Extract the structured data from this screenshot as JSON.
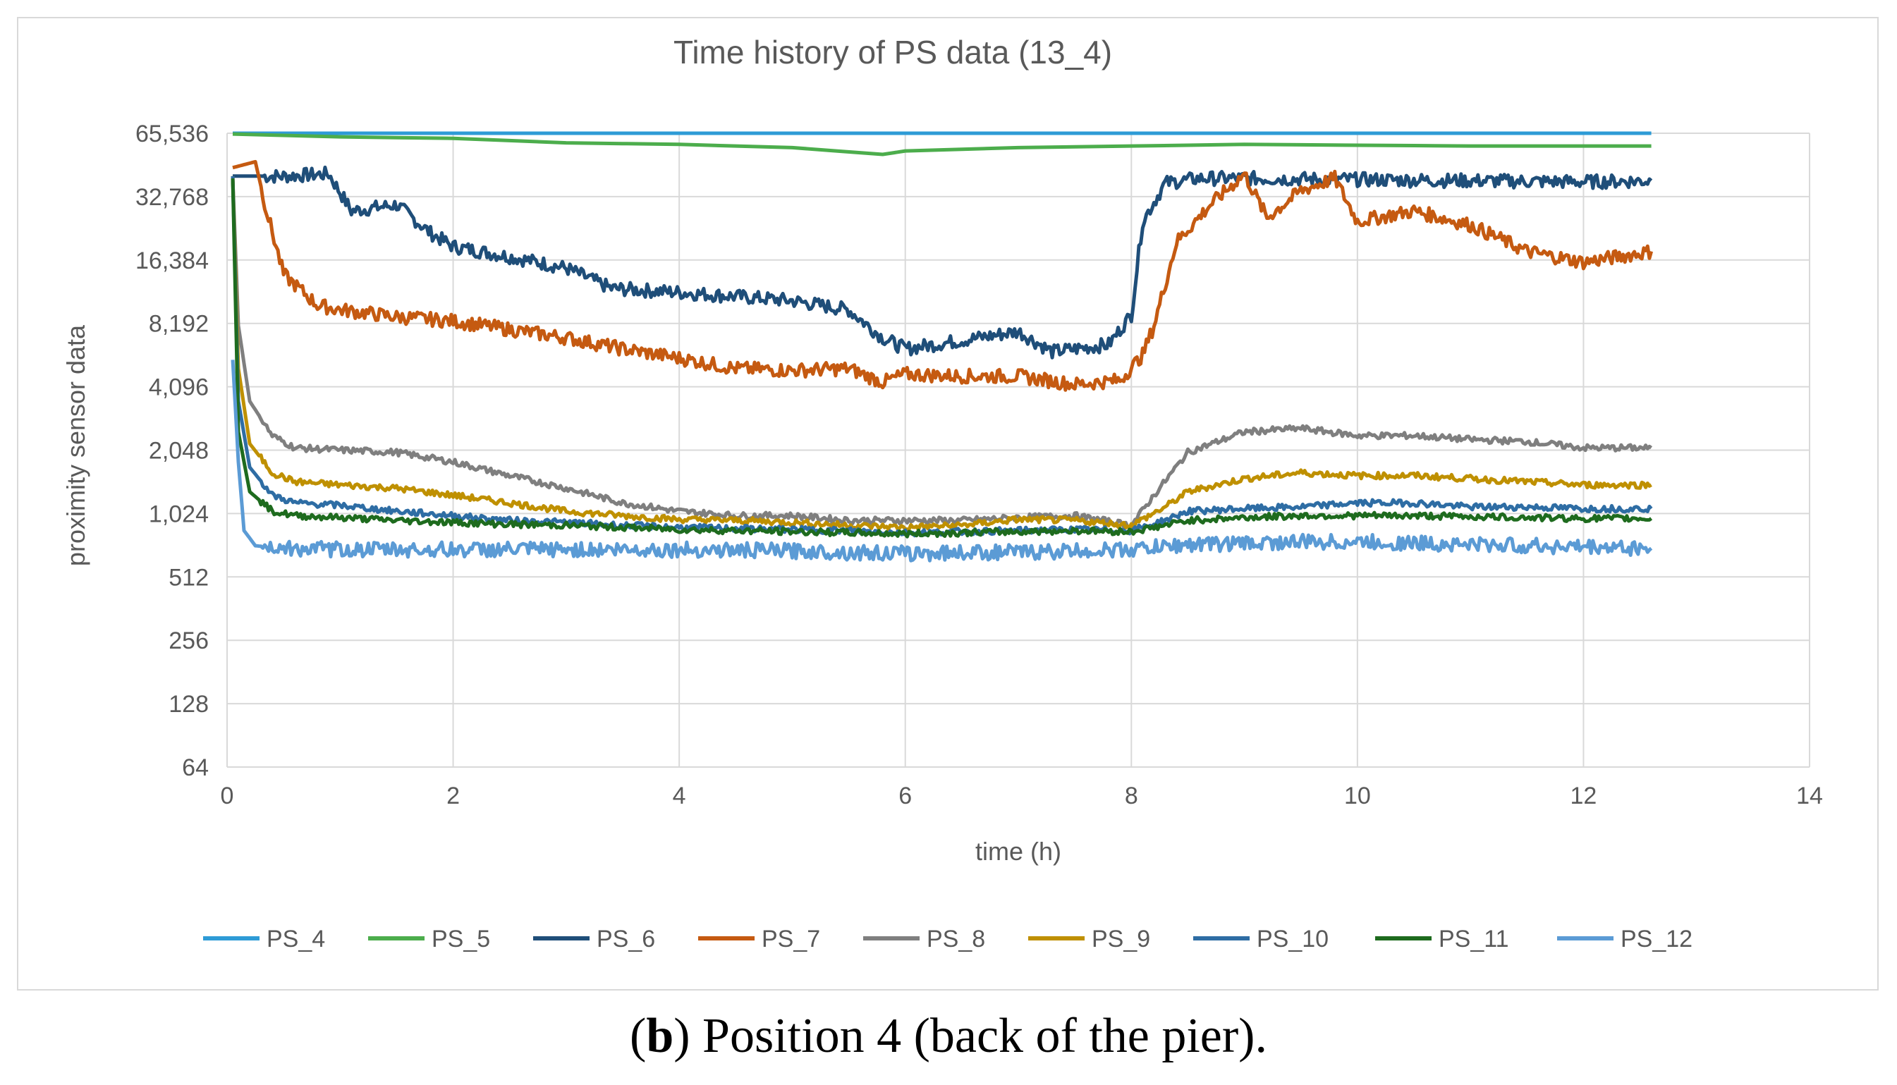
{
  "caption": {
    "label": "b",
    "text": ") Position 4 (back of the pier)."
  },
  "chart_data": {
    "type": "line",
    "title": "Time history of PS data (13_4)",
    "xlabel": "time (h)",
    "ylabel": "proximity sensor data",
    "xlim": [
      0,
      14
    ],
    "x_ticks": [
      0,
      2,
      4,
      6,
      8,
      10,
      12,
      14
    ],
    "y_scale": "log2",
    "ylim": [
      64,
      65536
    ],
    "y_ticks": [
      64,
      128,
      256,
      512,
      1024,
      2048,
      4096,
      8192,
      16384,
      32768,
      65536
    ],
    "y_tick_labels": [
      "64",
      "128",
      "256",
      "512",
      "1,024",
      "2,048",
      "4,096",
      "8,192",
      "16,384",
      "32,768",
      "65,536"
    ],
    "grid": true,
    "legend_position": "bottom",
    "series": [
      {
        "name": "PS_4",
        "color": "#2e9bd6",
        "points": [
          [
            0.05,
            65536
          ],
          [
            2,
            65536
          ],
          [
            4,
            65536
          ],
          [
            6,
            65536
          ],
          [
            8,
            65536
          ],
          [
            10,
            65536
          ],
          [
            12.6,
            65536
          ]
        ]
      },
      {
        "name": "PS_5",
        "color": "#4cad4c",
        "points": [
          [
            0.05,
            65000
          ],
          [
            1,
            63000
          ],
          [
            2,
            62000
          ],
          [
            3,
            59000
          ],
          [
            4,
            58000
          ],
          [
            5,
            56000
          ],
          [
            5.8,
            52000
          ],
          [
            6,
            54000
          ],
          [
            7,
            56000
          ],
          [
            8,
            57000
          ],
          [
            9,
            58000
          ],
          [
            10,
            57500
          ],
          [
            11,
            57000
          ],
          [
            12,
            57000
          ],
          [
            12.6,
            57000
          ]
        ]
      },
      {
        "name": "PS_6",
        "color": "#1f4e79",
        "points": [
          [
            0.05,
            41000
          ],
          [
            0.5,
            41000
          ],
          [
            0.9,
            42000
          ],
          [
            1.1,
            28000
          ],
          [
            1.5,
            30000
          ],
          [
            1.8,
            22000
          ],
          [
            2,
            19000
          ],
          [
            2.5,
            17000
          ],
          [
            3,
            15000
          ],
          [
            3.4,
            12000
          ],
          [
            4,
            11500
          ],
          [
            4.5,
            11000
          ],
          [
            5,
            10500
          ],
          [
            5.5,
            9500
          ],
          [
            5.8,
            7000
          ],
          [
            6,
            6200
          ],
          [
            6.5,
            6800
          ],
          [
            7,
            7500
          ],
          [
            7.3,
            6000
          ],
          [
            7.8,
            6500
          ],
          [
            8,
            9000
          ],
          [
            8.1,
            25000
          ],
          [
            8.3,
            38000
          ],
          [
            8.6,
            40000
          ],
          [
            9,
            40000
          ],
          [
            10,
            39500
          ],
          [
            11,
            39000
          ],
          [
            12,
            38500
          ],
          [
            12.6,
            39000
          ]
        ]
      },
      {
        "name": "PS_7",
        "color": "#c55a11",
        "points": [
          [
            0.05,
            45000
          ],
          [
            0.25,
            48000
          ],
          [
            0.35,
            28000
          ],
          [
            0.5,
            14000
          ],
          [
            0.8,
            10000
          ],
          [
            1,
            9500
          ],
          [
            1.5,
            8800
          ],
          [
            2,
            8400
          ],
          [
            3,
            7000
          ],
          [
            3.5,
            6200
          ],
          [
            4,
            5600
          ],
          [
            4.5,
            5000
          ],
          [
            5,
            4900
          ],
          [
            5.5,
            5000
          ],
          [
            5.8,
            4300
          ],
          [
            6,
            4700
          ],
          [
            6.5,
            4600
          ],
          [
            7,
            4600
          ],
          [
            7.5,
            4200
          ],
          [
            7.9,
            4400
          ],
          [
            8.1,
            5800
          ],
          [
            8.2,
            8000
          ],
          [
            8.4,
            20000
          ],
          [
            8.7,
            30000
          ],
          [
            9,
            42000
          ],
          [
            9.2,
            26000
          ],
          [
            9.5,
            35000
          ],
          [
            9.8,
            40000
          ],
          [
            10,
            25000
          ],
          [
            10.5,
            28000
          ],
          [
            11,
            24000
          ],
          [
            11.5,
            18000
          ],
          [
            12,
            16000
          ],
          [
            12.6,
            18000
          ]
        ]
      },
      {
        "name": "PS_8",
        "color": "#7f7f7f",
        "points": [
          [
            0.05,
            40000
          ],
          [
            0.1,
            8000
          ],
          [
            0.2,
            3500
          ],
          [
            0.4,
            2400
          ],
          [
            0.6,
            2100
          ],
          [
            1,
            2050
          ],
          [
            1.5,
            2000
          ],
          [
            2,
            1800
          ],
          [
            2.5,
            1550
          ],
          [
            3,
            1350
          ],
          [
            3.5,
            1150
          ],
          [
            4,
            1050
          ],
          [
            4.5,
            1000
          ],
          [
            5,
            1000
          ],
          [
            5.5,
            950
          ],
          [
            6,
            950
          ],
          [
            6.5,
            950
          ],
          [
            7,
            980
          ],
          [
            7.5,
            1000
          ],
          [
            8,
            900
          ],
          [
            8.2,
            1250
          ],
          [
            8.5,
            2000
          ],
          [
            9,
            2500
          ],
          [
            9.5,
            2600
          ],
          [
            10,
            2400
          ],
          [
            10.5,
            2400
          ],
          [
            11,
            2300
          ],
          [
            11.5,
            2250
          ],
          [
            12,
            2100
          ],
          [
            12.6,
            2100
          ]
        ]
      },
      {
        "name": "PS_9",
        "color": "#bf9000",
        "points": [
          [
            0.05,
            41000
          ],
          [
            0.1,
            5000
          ],
          [
            0.2,
            2200
          ],
          [
            0.4,
            1600
          ],
          [
            0.6,
            1450
          ],
          [
            1,
            1400
          ],
          [
            1.5,
            1350
          ],
          [
            2,
            1250
          ],
          [
            2.5,
            1150
          ],
          [
            3,
            1050
          ],
          [
            3.5,
            1000
          ],
          [
            4,
            960
          ],
          [
            4.5,
            950
          ],
          [
            5,
            930
          ],
          [
            5.5,
            900
          ],
          [
            6,
            880
          ],
          [
            6.5,
            900
          ],
          [
            7,
            960
          ],
          [
            7.5,
            950
          ],
          [
            8,
            900
          ],
          [
            8.3,
            1100
          ],
          [
            8.5,
            1300
          ],
          [
            9,
            1500
          ],
          [
            9.5,
            1600
          ],
          [
            10,
            1550
          ],
          [
            10.5,
            1550
          ],
          [
            11,
            1500
          ],
          [
            11.5,
            1450
          ],
          [
            12,
            1400
          ],
          [
            12.6,
            1400
          ]
        ]
      },
      {
        "name": "PS_10",
        "color": "#2e6da4",
        "points": [
          [
            0.05,
            41000
          ],
          [
            0.1,
            3500
          ],
          [
            0.2,
            1700
          ],
          [
            0.4,
            1250
          ],
          [
            0.6,
            1150
          ],
          [
            1,
            1120
          ],
          [
            1.5,
            1050
          ],
          [
            2,
            1000
          ],
          [
            2.5,
            950
          ],
          [
            3,
            930
          ],
          [
            3.5,
            900
          ],
          [
            4,
            880
          ],
          [
            4.5,
            870
          ],
          [
            5,
            860
          ],
          [
            5.5,
            850
          ],
          [
            6,
            830
          ],
          [
            6.5,
            840
          ],
          [
            7,
            850
          ],
          [
            7.5,
            860
          ],
          [
            8,
            850
          ],
          [
            8.3,
            950
          ],
          [
            8.5,
            1050
          ],
          [
            9,
            1080
          ],
          [
            9.5,
            1100
          ],
          [
            10,
            1150
          ],
          [
            10.5,
            1150
          ],
          [
            11,
            1100
          ],
          [
            11.5,
            1100
          ],
          [
            12,
            1080
          ],
          [
            12.6,
            1080
          ]
        ]
      },
      {
        "name": "PS_11",
        "color": "#1e6b1e",
        "points": [
          [
            0.05,
            40000
          ],
          [
            0.1,
            2500
          ],
          [
            0.2,
            1300
          ],
          [
            0.4,
            1050
          ],
          [
            0.6,
            1000
          ],
          [
            1,
            980
          ],
          [
            1.5,
            950
          ],
          [
            2,
            930
          ],
          [
            2.5,
            910
          ],
          [
            3,
            900
          ],
          [
            3.5,
            880
          ],
          [
            4,
            860
          ],
          [
            4.5,
            850
          ],
          [
            5,
            840
          ],
          [
            5.5,
            830
          ],
          [
            6,
            820
          ],
          [
            6.5,
            830
          ],
          [
            7,
            840
          ],
          [
            7.5,
            850
          ],
          [
            8,
            840
          ],
          [
            8.3,
            900
          ],
          [
            8.5,
            950
          ],
          [
            9,
            980
          ],
          [
            9.5,
            1000
          ],
          [
            10,
            1000
          ],
          [
            10.5,
            1000
          ],
          [
            11,
            990
          ],
          [
            11.5,
            980
          ],
          [
            12,
            970
          ],
          [
            12.6,
            970
          ]
        ]
      },
      {
        "name": "PS_12",
        "color": "#5b9bd5",
        "points": [
          [
            0.05,
            5500
          ],
          [
            0.1,
            1800
          ],
          [
            0.15,
            850
          ],
          [
            0.25,
            720
          ],
          [
            0.5,
            700
          ],
          [
            1,
            690
          ],
          [
            2,
            690
          ],
          [
            3,
            690
          ],
          [
            4,
            690
          ],
          [
            5,
            680
          ],
          [
            6,
            660
          ],
          [
            6.5,
            670
          ],
          [
            7,
            670
          ],
          [
            7.5,
            680
          ],
          [
            8,
            690
          ],
          [
            8.5,
            730
          ],
          [
            9,
            740
          ],
          [
            9.5,
            750
          ],
          [
            10,
            750
          ],
          [
            10.5,
            740
          ],
          [
            11,
            730
          ],
          [
            11.5,
            720
          ],
          [
            12,
            710
          ],
          [
            12.6,
            700
          ]
        ]
      }
    ]
  }
}
